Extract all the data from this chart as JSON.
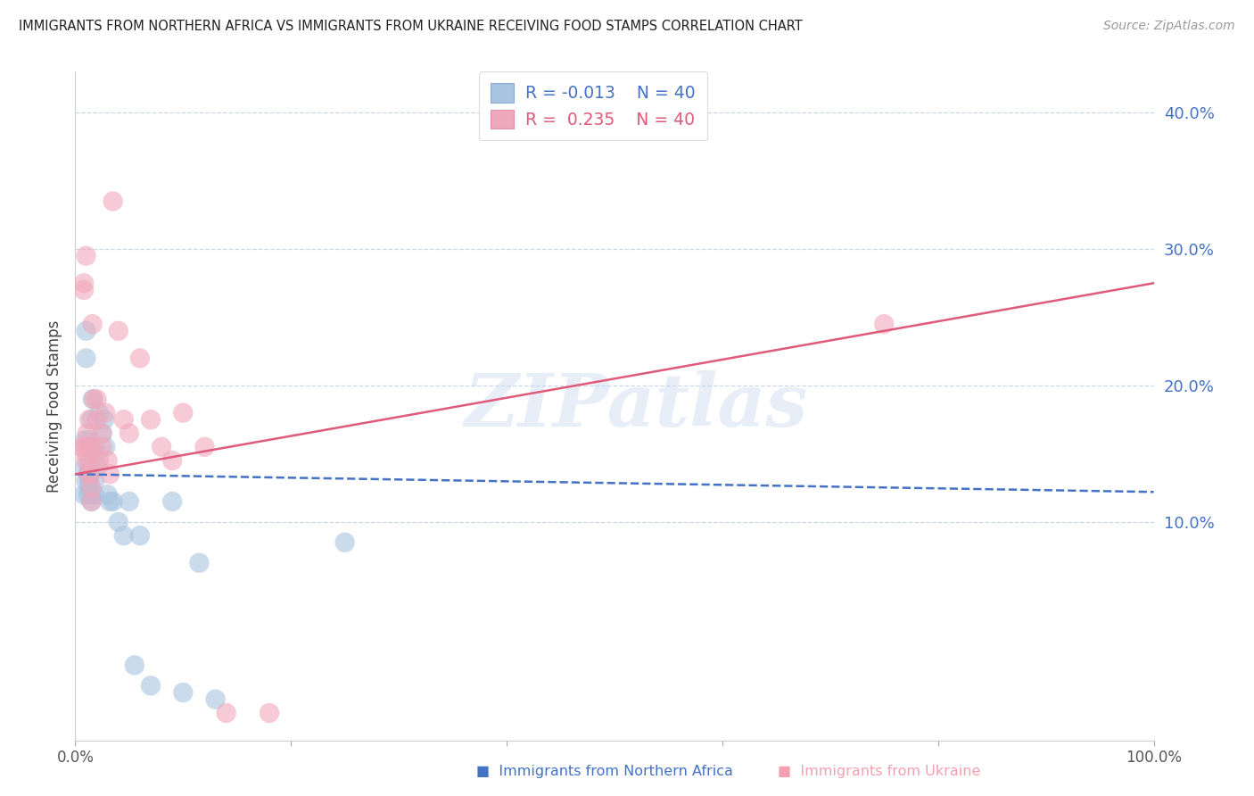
{
  "title": "IMMIGRANTS FROM NORTHERN AFRICA VS IMMIGRANTS FROM UKRAINE RECEIVING FOOD STAMPS CORRELATION CHART",
  "source": "Source: ZipAtlas.com",
  "ylabel": "Receiving Food Stamps",
  "watermark": "ZIPatlas",
  "legend_R_blue": "R = -0.013",
  "legend_N_blue": "N = 40",
  "legend_R_pink": "R =  0.235",
  "legend_N_pink": "N = 40",
  "blue_color": "#a8c4e0",
  "pink_color": "#f0a8bc",
  "line_blue_color": "#4472c4",
  "line_pink_color": "#e05a7a",
  "grid_color": "#c8d8e8",
  "xmin": 0.0,
  "xmax": 1.0,
  "ymin": -0.06,
  "ymax": 0.43,
  "ytick_vals": [
    0.1,
    0.2,
    0.3,
    0.4
  ],
  "ytick_labels": [
    "10.0%",
    "20.0%",
    "30.0%",
    "40.0%"
  ],
  "xtick_vals": [
    0.0,
    0.2,
    0.4,
    0.6,
    0.8,
    1.0
  ],
  "xtick_labels": [
    "0.0%",
    "",
    "",
    "",
    "",
    "100.0%"
  ],
  "blue_scatter_x": [
    0.008,
    0.009,
    0.009,
    0.01,
    0.01,
    0.01,
    0.012,
    0.012,
    0.013,
    0.013,
    0.013,
    0.013,
    0.014,
    0.014,
    0.015,
    0.015,
    0.015,
    0.016,
    0.018,
    0.018,
    0.019,
    0.02,
    0.022,
    0.025,
    0.027,
    0.028,
    0.03,
    0.032,
    0.035,
    0.04,
    0.045,
    0.05,
    0.055,
    0.06,
    0.07,
    0.09,
    0.1,
    0.115,
    0.13,
    0.25
  ],
  "blue_scatter_y": [
    0.12,
    0.14,
    0.16,
    0.13,
    0.22,
    0.24,
    0.12,
    0.135,
    0.125,
    0.13,
    0.135,
    0.14,
    0.155,
    0.16,
    0.115,
    0.12,
    0.175,
    0.19,
    0.12,
    0.13,
    0.15,
    0.14,
    0.18,
    0.165,
    0.175,
    0.155,
    0.12,
    0.115,
    0.115,
    0.1,
    0.09,
    0.115,
    -0.005,
    0.09,
    -0.02,
    0.115,
    -0.025,
    0.07,
    -0.03,
    0.085
  ],
  "pink_scatter_x": [
    0.006,
    0.008,
    0.008,
    0.009,
    0.01,
    0.01,
    0.01,
    0.011,
    0.011,
    0.012,
    0.013,
    0.013,
    0.014,
    0.014,
    0.015,
    0.015,
    0.016,
    0.017,
    0.018,
    0.02,
    0.02,
    0.022,
    0.025,
    0.025,
    0.028,
    0.03,
    0.032,
    0.035,
    0.04,
    0.045,
    0.05,
    0.06,
    0.07,
    0.08,
    0.09,
    0.1,
    0.12,
    0.14,
    0.18,
    0.75
  ],
  "pink_scatter_y": [
    0.155,
    0.27,
    0.275,
    0.155,
    0.145,
    0.15,
    0.295,
    0.155,
    0.165,
    0.135,
    0.155,
    0.175,
    0.135,
    0.145,
    0.115,
    0.125,
    0.245,
    0.19,
    0.155,
    0.175,
    0.19,
    0.145,
    0.155,
    0.165,
    0.18,
    0.145,
    0.135,
    0.335,
    0.24,
    0.175,
    0.165,
    0.22,
    0.175,
    0.155,
    0.145,
    0.18,
    0.155,
    -0.04,
    -0.04,
    0.245
  ],
  "blue_line_y_start": 0.135,
  "blue_line_y_end": 0.122,
  "pink_line_y_start": 0.135,
  "pink_line_y_end": 0.275
}
